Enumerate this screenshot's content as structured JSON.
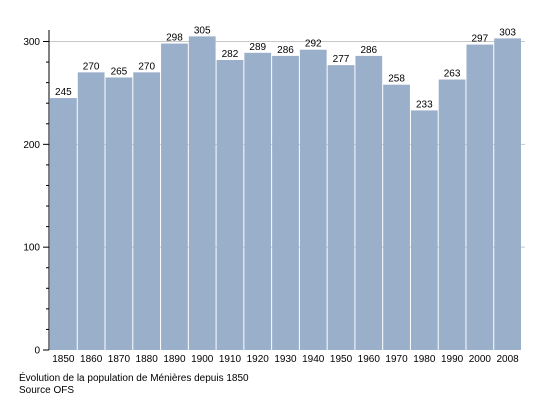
{
  "chart_data": {
    "type": "bar",
    "categories": [
      "1850",
      "1860",
      "1870",
      "1880",
      "1890",
      "1900",
      "1910",
      "1920",
      "1930",
      "1940",
      "1950",
      "1960",
      "1970",
      "1980",
      "1990",
      "2000",
      "2008"
    ],
    "values": [
      245,
      270,
      265,
      270,
      298,
      305,
      282,
      289,
      286,
      292,
      277,
      286,
      258,
      233,
      263,
      297,
      303
    ],
    "ylim": [
      0,
      300
    ],
    "yticks": [
      0,
      100,
      200,
      300
    ],
    "grid": true,
    "bar_color": "#9aafc9"
  },
  "caption": {
    "line1": "Évolution de la population de Ménières depuis 1850",
    "line2": "Source OFS"
  }
}
